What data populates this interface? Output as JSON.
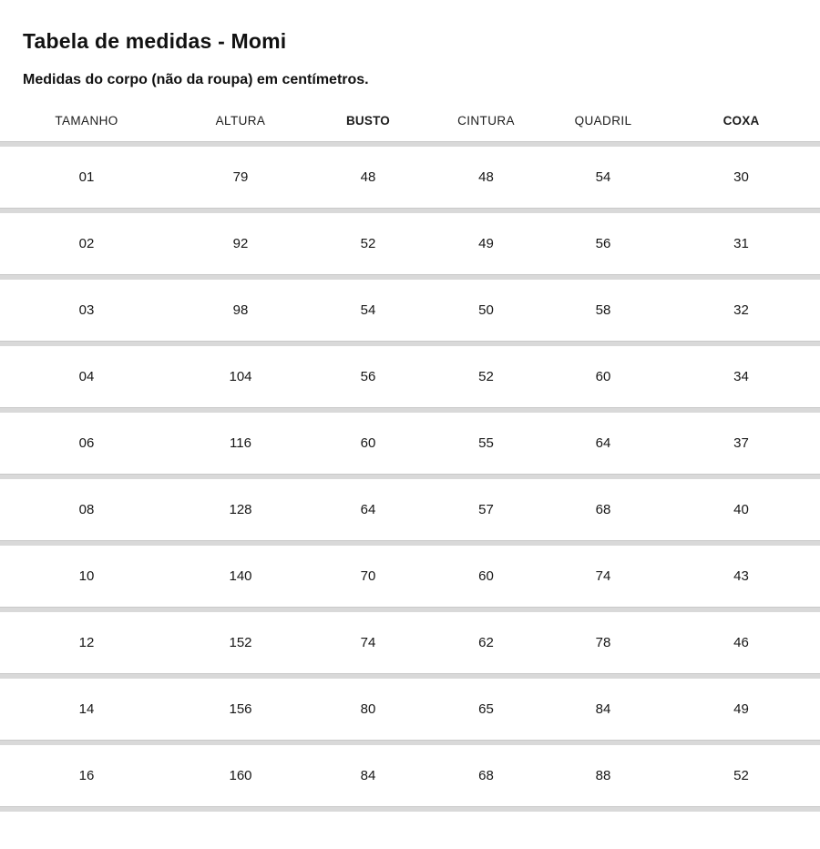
{
  "page": {
    "title": "Tabela de medidas - Momi",
    "subtitle": "Medidas do corpo (não da roupa) em centímetros."
  },
  "table": {
    "columns": [
      {
        "label": "TAMANHO",
        "bold": false
      },
      {
        "label": "ALTURA",
        "bold": false
      },
      {
        "label": "BUSTO",
        "bold": true
      },
      {
        "label": "CINTURA",
        "bold": false
      },
      {
        "label": "QUADRIL",
        "bold": false
      },
      {
        "label": "COXA",
        "bold": true
      }
    ],
    "rows": [
      [
        "01",
        "79",
        "48",
        "48",
        "54",
        "30"
      ],
      [
        "02",
        "92",
        "52",
        "49",
        "56",
        "31"
      ],
      [
        "03",
        "98",
        "54",
        "50",
        "58",
        "32"
      ],
      [
        "04",
        "104",
        "56",
        "52",
        "60",
        "34"
      ],
      [
        "06",
        "116",
        "60",
        "55",
        "64",
        "37"
      ],
      [
        "08",
        "128",
        "64",
        "57",
        "68",
        "40"
      ],
      [
        "10",
        "140",
        "70",
        "60",
        "74",
        "43"
      ],
      [
        "12",
        "152",
        "74",
        "62",
        "78",
        "46"
      ],
      [
        "14",
        "156",
        "80",
        "65",
        "84",
        "49"
      ],
      [
        "16",
        "160",
        "84",
        "68",
        "88",
        "52"
      ]
    ]
  }
}
